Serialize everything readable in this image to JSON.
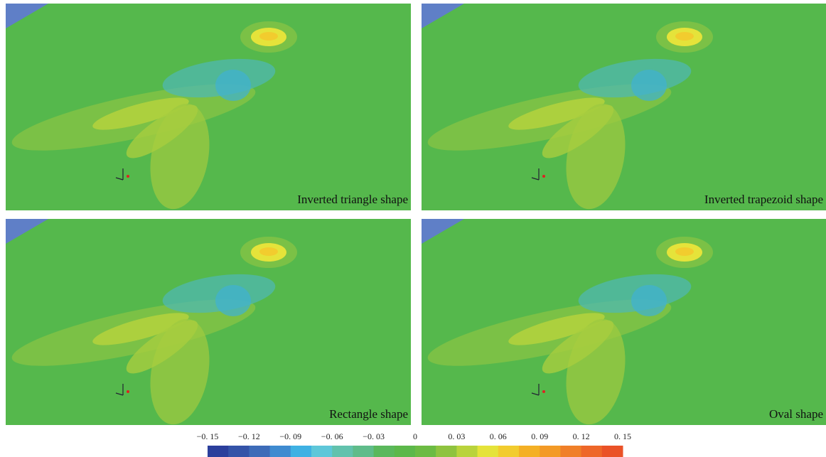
{
  "panels": [
    {
      "label": "Inverted triangle shape"
    },
    {
      "label": "Inverted trapezoid shape"
    },
    {
      "label": "Rectangle shape"
    },
    {
      "label": "Oval shape"
    }
  ],
  "colorbar": {
    "lim": [
      -0.15,
      0.15
    ],
    "ticks": [
      {
        "value": -0.15,
        "label": "−0. 15"
      },
      {
        "value": -0.12,
        "label": "−0. 12"
      },
      {
        "value": -0.09,
        "label": "−0. 09"
      },
      {
        "value": -0.06,
        "label": "−0. 06"
      },
      {
        "value": -0.03,
        "label": "−0. 03"
      },
      0,
      {
        "value": 0.03,
        "label": "0. 03"
      },
      {
        "value": 0.06,
        "label": "0. 06"
      },
      {
        "value": 0.09,
        "label": "0. 09"
      },
      {
        "value": 0.12,
        "label": "0. 12"
      },
      {
        "value": 0.15,
        "label": "0. 15"
      }
    ],
    "colors": [
      "#2b3f9c",
      "#3453a8",
      "#3d6bb8",
      "#3f8bd0",
      "#3fb1e3",
      "#5ec7d9",
      "#62c2ad",
      "#5fbc8a",
      "#5ab85c",
      "#5cb84a",
      "#6cbb43",
      "#8fc33f",
      "#b9d33c",
      "#e5e33a",
      "#f2cc2e",
      "#f4b025",
      "#f39a26",
      "#f07f28",
      "#ee6729",
      "#ea5227"
    ]
  }
}
